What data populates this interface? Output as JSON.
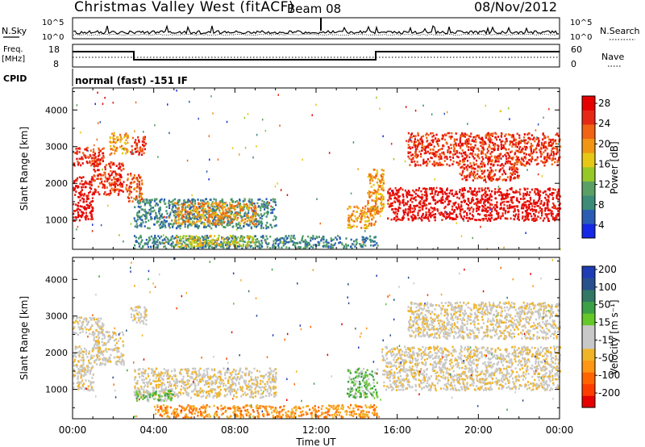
{
  "header": {
    "title": "Christmas Valley West (fitACF)",
    "beam": "Beam 08",
    "date": "08/Nov/2012"
  },
  "top_panels": {
    "nsky_label": "N.Sky",
    "nsky_tick_hi": "10^5",
    "nsky_tick_lo": "10^0",
    "nsearch_tick_hi": "10^5",
    "nsearch_tick_lo": "10^0",
    "nsearch_label": "N.Search",
    "freq_label_1": "Freq.",
    "freq_label_2": "[MHz]",
    "freq_tick_hi": "18",
    "freq_tick_lo": "8",
    "nave_tick_hi": "60",
    "nave_tick_lo": "0",
    "nave_label": "Nave",
    "cpid_label": "CPID",
    "cpid_text": "normal (fast) -151 IF"
  },
  "colorbars": {
    "power": {
      "label": "Power [dB]",
      "ticks": [
        "4",
        "8",
        "12",
        "16",
        "20",
        "24",
        "28"
      ],
      "colors": [
        "#1428e6",
        "#2a5cb4",
        "#3c8c78",
        "#5aa064",
        "#96c828",
        "#e6c814",
        "#f09614",
        "#f06414",
        "#e62814",
        "#e60000"
      ]
    },
    "velocity": {
      "label": "Velocity [m s⁻¹]",
      "ticks": [
        "-200",
        "-100",
        "-50",
        "-15",
        "15",
        "50",
        "100",
        "200"
      ],
      "colors": [
        "#e60000",
        "#ff3c00",
        "#ff6400",
        "#ff9614",
        "#f0b428",
        "#c8c8c8",
        "#c8c8c8",
        "#64c828",
        "#3ca046",
        "#327864",
        "#28508c",
        "#1e3cb4"
      ]
    }
  },
  "chart_data": [
    {
      "type": "heatmap",
      "name": "power",
      "ylabel": "Slant Range [km]",
      "xlabel": "Time UT",
      "xticks": [
        "00:00",
        "04:00",
        "08:00",
        "12:00",
        "16:00",
        "20:00",
        "00:00"
      ],
      "yticks": [
        1000,
        2000,
        3000,
        4000
      ],
      "xlim": [
        0,
        24
      ],
      "ylim": [
        200,
        4600
      ],
      "regions": [
        {
          "t0": 0.0,
          "t1": 1.0,
          "r0": 1000,
          "r1": 2200,
          "level": 9
        },
        {
          "t0": 0.0,
          "t1": 1.5,
          "r0": 2500,
          "r1": 3000,
          "level": 8
        },
        {
          "t0": 1.0,
          "t1": 2.5,
          "r0": 1700,
          "r1": 2600,
          "level": 8
        },
        {
          "t0": 1.8,
          "t1": 2.7,
          "r0": 2800,
          "r1": 3400,
          "level": 6
        },
        {
          "t0": 2.6,
          "t1": 3.4,
          "r0": 1500,
          "r1": 2300,
          "level": 7
        },
        {
          "t0": 2.8,
          "t1": 3.6,
          "r0": 2800,
          "r1": 3300,
          "level": 8
        },
        {
          "t0": 3.0,
          "t1": 10.0,
          "r0": 800,
          "r1": 1600,
          "level": 2
        },
        {
          "t0": 5.0,
          "t1": 9.0,
          "r0": 900,
          "r1": 1500,
          "level": 6
        },
        {
          "t0": 3.0,
          "t1": 15.0,
          "r0": 250,
          "r1": 600,
          "level": 2
        },
        {
          "t0": 5.0,
          "t1": 9.0,
          "r0": 300,
          "r1": 600,
          "level": 5
        },
        {
          "t0": 13.5,
          "t1": 15.0,
          "r0": 800,
          "r1": 1400,
          "level": 6
        },
        {
          "t0": 14.5,
          "t1": 15.3,
          "r0": 1200,
          "r1": 2400,
          "level": 6
        },
        {
          "t0": 15.5,
          "t1": 24.0,
          "r0": 1000,
          "r1": 1900,
          "level": 9
        },
        {
          "t0": 16.5,
          "t1": 24.0,
          "r0": 2500,
          "r1": 3400,
          "level": 8
        },
        {
          "t0": 19.0,
          "t1": 22.0,
          "r0": 2100,
          "r1": 2500,
          "level": 8
        }
      ]
    },
    {
      "type": "heatmap",
      "name": "velocity",
      "ylabel": "Slant Range [km]",
      "xlabel": "Time UT",
      "xticks": [
        "00:00",
        "04:00",
        "08:00",
        "12:00",
        "16:00",
        "20:00",
        "00:00"
      ],
      "yticks": [
        1000,
        2000,
        3000,
        4000
      ],
      "xlim": [
        0,
        24
      ],
      "ylim": [
        200,
        4600
      ],
      "regions": [
        {
          "t0": 0.0,
          "t1": 1.0,
          "r0": 1000,
          "r1": 2200,
          "level": 5
        },
        {
          "t0": 0.0,
          "t1": 1.5,
          "r0": 2500,
          "r1": 3000,
          "level": 5
        },
        {
          "t0": 1.0,
          "t1": 2.5,
          "r0": 1700,
          "r1": 2600,
          "level": 5
        },
        {
          "t0": 2.8,
          "t1": 3.6,
          "r0": 2800,
          "r1": 3300,
          "level": 5
        },
        {
          "t0": 3.0,
          "t1": 10.0,
          "r0": 800,
          "r1": 1600,
          "level": 5
        },
        {
          "t0": 3.0,
          "t1": 5.0,
          "r0": 700,
          "r1": 1000,
          "level": 7
        },
        {
          "t0": 4.0,
          "t1": 15.0,
          "r0": 250,
          "r1": 600,
          "level": 3
        },
        {
          "t0": 13.5,
          "t1": 15.0,
          "r0": 800,
          "r1": 1600,
          "level": 7
        },
        {
          "t0": 15.2,
          "t1": 24.0,
          "r0": 1000,
          "r1": 2200,
          "level": 5
        },
        {
          "t0": 16.5,
          "t1": 24.0,
          "r0": 2400,
          "r1": 3400,
          "level": 5
        }
      ]
    }
  ]
}
